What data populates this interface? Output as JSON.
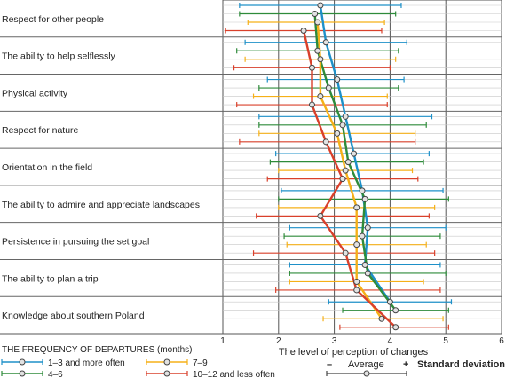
{
  "chart_data": {
    "type": "line",
    "orientation": "horizontal",
    "xlabel": "The level of perception of changes",
    "xlim": [
      1,
      6
    ],
    "x_ticks": [
      1,
      2,
      3,
      4,
      5,
      6
    ],
    "grid": true,
    "categories": [
      "Respect for other people",
      "The ability to help selflessly",
      "Physical activity",
      "Respect for nature",
      "Orientation in the field",
      "The ability to admire and appreciate landscapes",
      "Persistence in pursuing the set goal",
      "The ability to plan a trip",
      "Knowledge about southern Poland"
    ],
    "series": [
      {
        "name": "1–3 and more often",
        "color": "#1e90c8",
        "values": [
          2.75,
          2.85,
          3.05,
          3.2,
          3.35,
          3.5,
          3.6,
          3.55,
          4.0
        ],
        "sd_low": [
          1.3,
          1.4,
          1.8,
          1.65,
          1.95,
          2.05,
          2.2,
          2.2,
          2.9
        ],
        "sd_high": [
          4.2,
          4.3,
          4.25,
          4.75,
          4.7,
          4.95,
          5.0,
          4.9,
          5.1
        ]
      },
      {
        "name": "4–6",
        "color": "#2e8b3a",
        "values": [
          2.65,
          2.7,
          2.9,
          3.15,
          3.25,
          3.55,
          3.5,
          3.6,
          4.1
        ],
        "sd_low": [
          1.3,
          1.25,
          1.65,
          1.65,
          1.85,
          2.0,
          2.1,
          2.2,
          3.15
        ],
        "sd_high": [
          4.1,
          4.15,
          4.15,
          4.65,
          4.6,
          5.05,
          4.9,
          5.0,
          5.05
        ]
      },
      {
        "name": "7–9",
        "color": "#f5b018",
        "values": [
          2.7,
          2.75,
          2.75,
          3.05,
          3.2,
          3.4,
          3.4,
          3.4,
          3.85
        ],
        "sd_low": [
          1.45,
          1.4,
          1.55,
          1.65,
          2.0,
          2.0,
          2.15,
          2.2,
          2.8
        ],
        "sd_high": [
          3.9,
          4.1,
          3.95,
          4.45,
          4.4,
          4.8,
          4.65,
          4.6,
          4.95
        ]
      },
      {
        "name": "10–12 and less often",
        "color": "#d9402b",
        "values": [
          2.45,
          2.6,
          2.6,
          2.85,
          3.15,
          2.75,
          3.2,
          3.4,
          4.1
        ],
        "sd_low": [
          1.05,
          1.2,
          1.25,
          1.3,
          1.8,
          1.6,
          1.55,
          1.95,
          3.1
        ],
        "sd_high": [
          3.85,
          4.0,
          3.95,
          4.45,
          4.5,
          4.7,
          4.8,
          4.9,
          5.05
        ]
      }
    ],
    "legend": {
      "title": "THE FREQUENCY OF DEPARTURES (months)",
      "placement": "bottom",
      "key_minus": "–",
      "key_average": "Average",
      "key_plus": "+",
      "key_sd": "Standard deviation"
    }
  }
}
